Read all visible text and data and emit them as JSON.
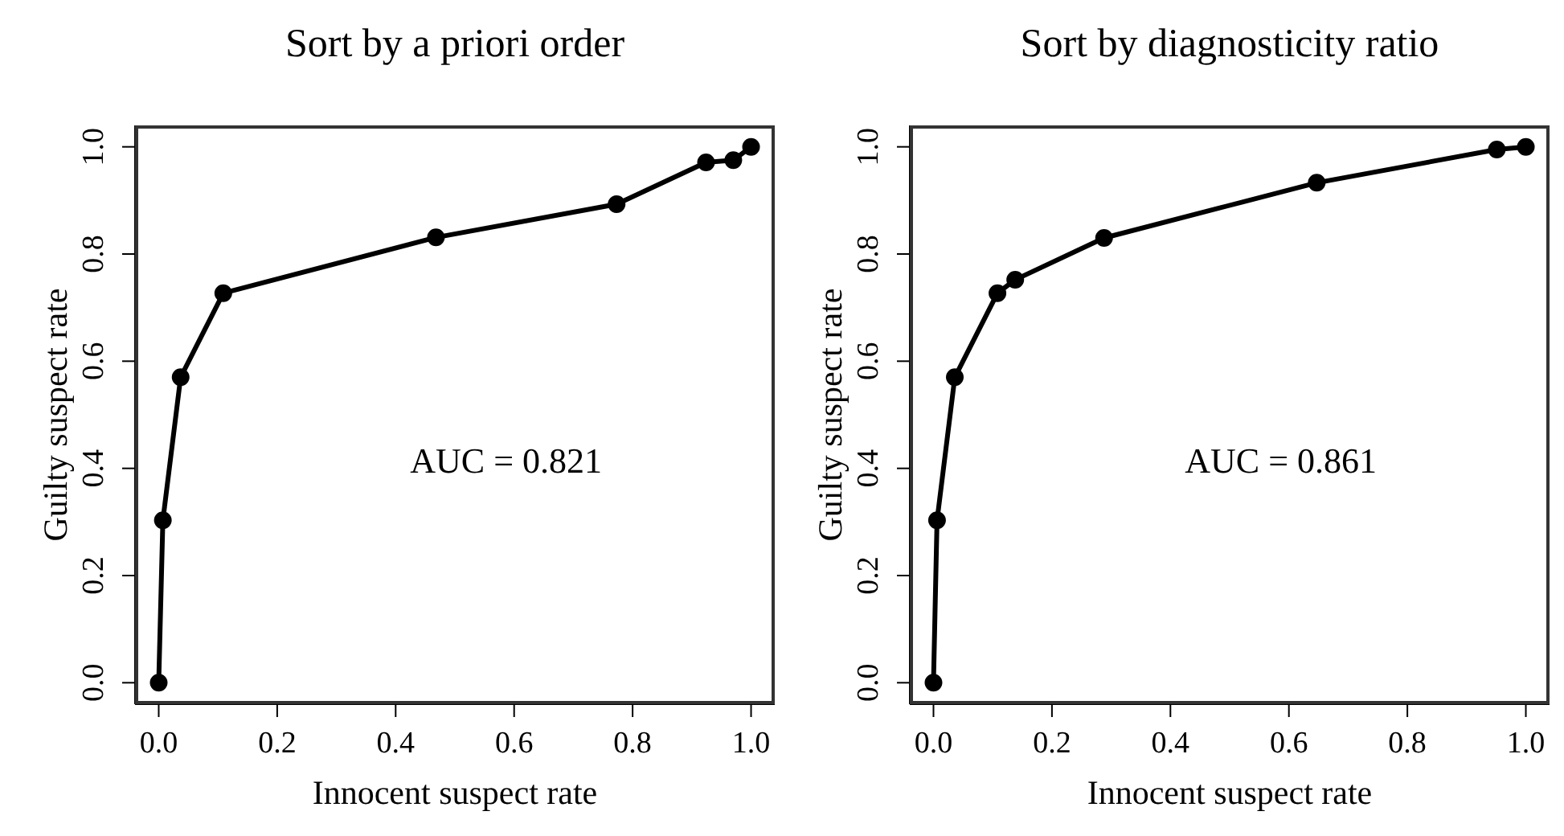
{
  "chart_data": [
    {
      "type": "line",
      "title": "Sort by a priori order",
      "xlabel": "Innocent suspect rate",
      "ylabel": "Guilty suspect rate",
      "marker": "circle",
      "line_style": "solid",
      "xlim": [
        -0.04,
        1.04
      ],
      "ylim": [
        -0.04,
        1.04
      ],
      "xticks": [
        {
          "value": 0,
          "label": "0.0"
        },
        {
          "value": 0.2,
          "label": "0.2"
        },
        {
          "value": 0.4,
          "label": "0.4"
        },
        {
          "value": 0.6,
          "label": "0.6"
        },
        {
          "value": 0.8,
          "label": "0.8"
        },
        {
          "value": 1,
          "label": "1.0"
        }
      ],
      "yticks": [
        {
          "value": 0,
          "label": "0.0"
        },
        {
          "value": 0.2,
          "label": "0.2"
        },
        {
          "value": 0.4,
          "label": "0.4"
        },
        {
          "value": 0.6,
          "label": "0.6"
        },
        {
          "value": 0.8,
          "label": "0.8"
        },
        {
          "value": 1,
          "label": "1.0"
        }
      ],
      "series": [
        {
          "color": "#000000",
          "x": [
            0,
            0.007,
            0.037,
            0.109,
            0.468,
            0.773,
            0.924,
            0.97,
            1
          ],
          "values": [
            0,
            0.303,
            0.57,
            0.727,
            0.831,
            0.893,
            0.971,
            0.975,
            1
          ]
        }
      ],
      "annotations": [
        "AUC = 0.821"
      ]
    },
    {
      "type": "line",
      "title": "Sort by diagnosticity ratio",
      "xlabel": "Innocent suspect rate",
      "ylabel": "Guilty suspect rate",
      "marker": "circle",
      "line_style": "solid",
      "xlim": [
        -0.04,
        1.04
      ],
      "ylim": [
        -0.04,
        1.04
      ],
      "xticks": [
        {
          "value": 0,
          "label": "0.0"
        },
        {
          "value": 0.2,
          "label": "0.2"
        },
        {
          "value": 0.4,
          "label": "0.4"
        },
        {
          "value": 0.6,
          "label": "0.6"
        },
        {
          "value": 0.8,
          "label": "0.8"
        },
        {
          "value": 1,
          "label": "1.0"
        }
      ],
      "yticks": [
        {
          "value": 0,
          "label": "0.0"
        },
        {
          "value": 0.2,
          "label": "0.2"
        },
        {
          "value": 0.4,
          "label": "0.4"
        },
        {
          "value": 0.6,
          "label": "0.6"
        },
        {
          "value": 0.8,
          "label": "0.8"
        },
        {
          "value": 1,
          "label": "1.0"
        }
      ],
      "series": [
        {
          "color": "#000000",
          "x": [
            0,
            0.006,
            0.036,
            0.108,
            0.138,
            0.288,
            0.647,
            0.951,
            1
          ],
          "values": [
            0,
            0.303,
            0.57,
            0.727,
            0.752,
            0.83,
            0.933,
            0.995,
            1
          ]
        }
      ],
      "annotations": [
        "AUC = 0.861"
      ]
    }
  ]
}
